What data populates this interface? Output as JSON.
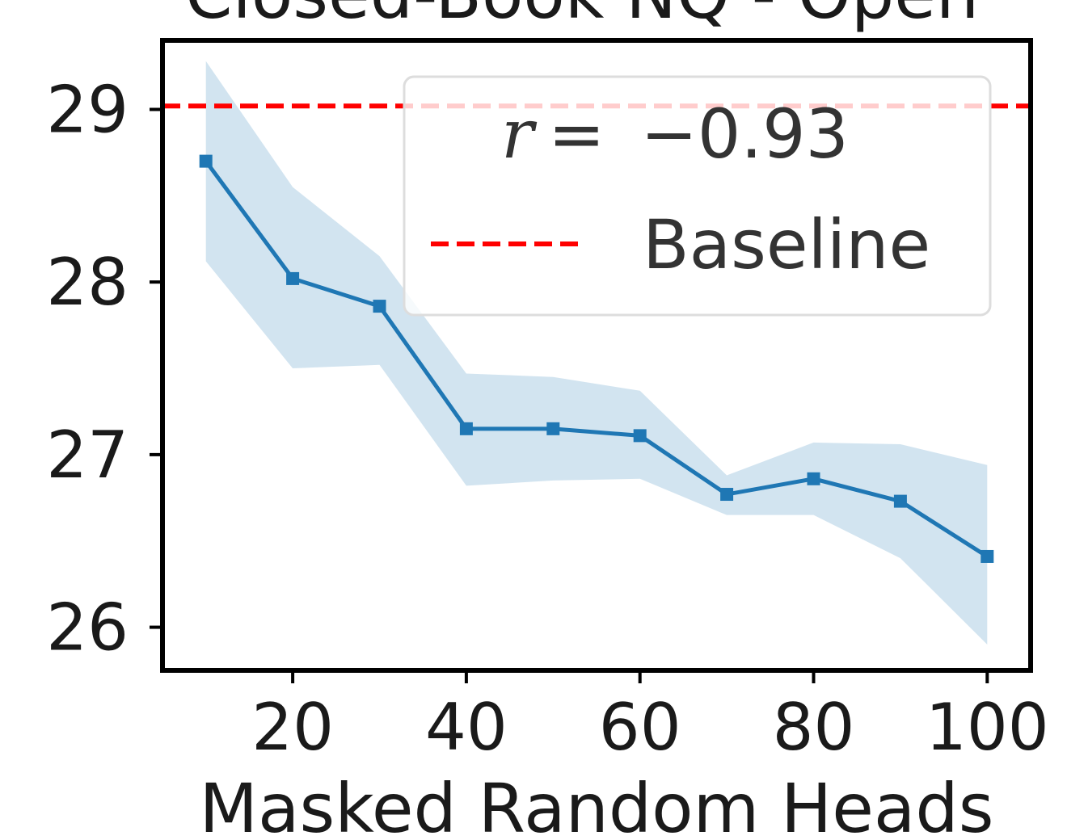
{
  "chart_data": {
    "type": "line",
    "title": "Closed-Book NQ - Open",
    "xlabel": "Masked Random Heads",
    "ylabel": "",
    "xlim": [
      5,
      105
    ],
    "ylim": [
      25.75,
      29.4
    ],
    "xticks": [
      20,
      40,
      60,
      80,
      100
    ],
    "yticks": [
      26,
      27,
      28,
      29
    ],
    "grid": false,
    "legend_position": "top-right",
    "series": [
      {
        "name": "r = −0.93",
        "color": "#1f77b4",
        "x": [
          10,
          20,
          30,
          40,
          50,
          60,
          70,
          80,
          90,
          100
        ],
        "y": [
          28.7,
          28.02,
          27.86,
          27.15,
          27.15,
          27.11,
          26.77,
          26.86,
          26.73,
          26.41
        ],
        "lower": [
          28.12,
          27.5,
          27.52,
          26.82,
          26.85,
          26.86,
          26.65,
          26.65,
          26.4,
          25.9
        ],
        "upper": [
          29.28,
          28.55,
          28.15,
          27.47,
          27.45,
          27.37,
          26.88,
          27.07,
          27.06,
          26.94
        ]
      }
    ],
    "reference_lines": [
      {
        "name": "Baseline",
        "y": 29.02,
        "color": "#ff0000",
        "style": "dashed"
      }
    ],
    "annotation": {
      "r_symbol": "r",
      "equals": "=",
      "value": "−0.93"
    }
  }
}
